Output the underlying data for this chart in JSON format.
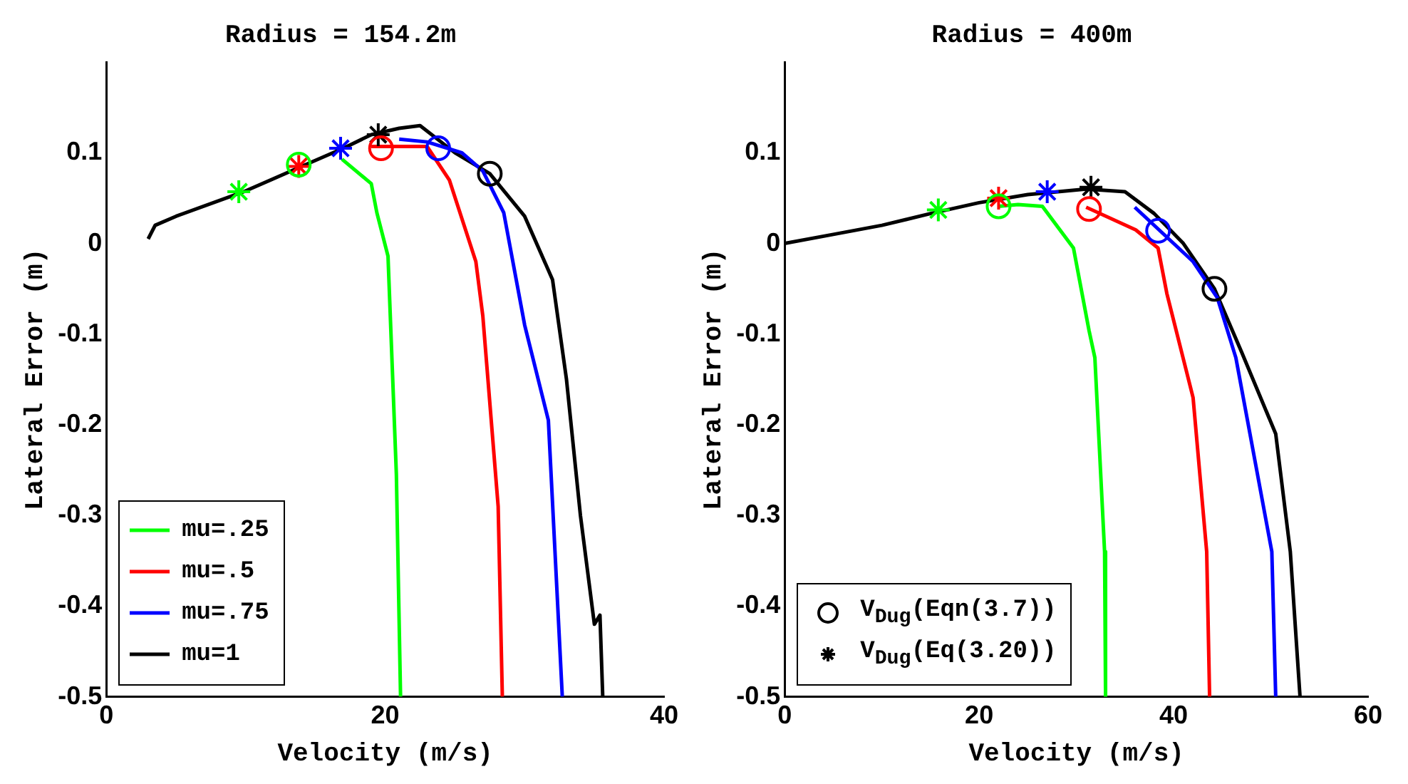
{
  "chart_data": [
    {
      "type": "line",
      "title": "Radius = 154.2m",
      "xlabel": "Velocity (m/s)",
      "ylabel": "Lateral Error (m)",
      "xlim": [
        0,
        40
      ],
      "xticks": [
        0,
        20,
        40
      ],
      "ylim": [
        -0.5,
        0.2
      ],
      "yticks": [
        -0.5,
        -0.4,
        -0.3,
        -0.2,
        -0.1,
        0,
        0.1
      ],
      "grid": false,
      "legend": "bottom left",
      "line_style": "solid",
      "series": [
        {
          "name": "mu=.25",
          "color": "#00ff00",
          "x": [
            16.9,
            19,
            19.4,
            20.2,
            20.8,
            21.1
          ],
          "values": [
            0.093,
            0.066,
            0.034,
            -0.014,
            -0.255,
            -0.5
          ]
        },
        {
          "name": "mu=.5",
          "color": "#ff0000",
          "x": [
            19,
            23,
            24.6,
            26.5,
            27,
            28.1,
            28.4
          ],
          "values": [
            0.107,
            0.107,
            0.07,
            -0.02,
            -0.08,
            -0.29,
            -0.5
          ]
        },
        {
          "name": "mu=.75",
          "color": "#0000ff",
          "x": [
            21,
            23,
            25.5,
            27,
            28.5,
            30,
            31.7,
            32.7
          ],
          "values": [
            0.115,
            0.112,
            0.1,
            0.08,
            0.034,
            -0.09,
            -0.195,
            -0.5
          ]
        },
        {
          "name": "mu=1",
          "color": "#000000",
          "x": [
            3,
            3.5,
            5,
            10,
            14,
            17,
            19,
            21,
            22.5,
            25,
            27.5,
            30,
            32,
            33,
            34,
            35,
            35.4,
            35.6
          ],
          "values": [
            0.005,
            0.02,
            0.03,
            0.058,
            0.085,
            0.105,
            0.12,
            0.127,
            0.13,
            0.1,
            0.077,
            0.03,
            -0.04,
            -0.15,
            -0.3,
            -0.42,
            -0.41,
            -0.5
          ]
        },
        {
          "type": "scatter",
          "marker": "circle",
          "colors": [
            "#00ff00",
            "#ff0000",
            "#0000ff",
            "#000000"
          ],
          "x": [
            13.8,
            19.7,
            23.8,
            27.5
          ],
          "values": [
            0.087,
            0.105,
            0.105,
            0.077
          ]
        },
        {
          "type": "scatter",
          "marker": "cross",
          "colors": [
            "#00ff00",
            "#ff0000",
            "#0000ff",
            "#000000"
          ],
          "x": [
            9.5,
            13.8,
            16.8,
            19.5
          ],
          "values": [
            0.057,
            0.085,
            0.105,
            0.12
          ]
        }
      ]
    },
    {
      "type": "line",
      "title": "Radius = 400m",
      "xlabel": "Velocity (m/s)",
      "ylabel": "Lateral Error (m)",
      "xlim": [
        0,
        60
      ],
      "xticks": [
        0,
        20,
        40,
        60
      ],
      "ylim": [
        -0.5,
        0.2
      ],
      "yticks": [
        -0.5,
        -0.4,
        -0.3,
        -0.2,
        -0.1,
        0,
        0.1
      ],
      "grid": false,
      "legend": "bottom left",
      "line_style": "solid",
      "series": [
        {
          "color": "#00ff00",
          "x": [
            22,
            24,
            26.5,
            29.7,
            31.3,
            31.9,
            32.9,
            33
          ],
          "values": [
            0.041,
            0.043,
            0.041,
            -0.005,
            -0.096,
            -0.126,
            -0.34,
            -0.5
          ]
        },
        {
          "color": "#ff0000",
          "x": [
            31,
            36.1,
            38.4,
            39.3,
            42,
            43.4,
            43.7
          ],
          "values": [
            0.04,
            0.015,
            -0.005,
            -0.055,
            -0.17,
            -0.34,
            -0.5
          ]
        },
        {
          "color": "#0000ff",
          "x": [
            36,
            38.5,
            42,
            44.5,
            46.4,
            50.1,
            50.5
          ],
          "values": [
            0.04,
            0.015,
            -0.02,
            -0.06,
            -0.126,
            -0.34,
            -0.5
          ]
        },
        {
          "color": "#000000",
          "x": [
            0,
            5,
            10,
            15,
            20,
            25,
            31,
            35,
            38,
            41,
            44.2,
            47,
            50.5,
            52,
            53
          ],
          "values": [
            0,
            0.01,
            0.02,
            0.033,
            0.045,
            0.054,
            0.06,
            0.057,
            0.033,
            0,
            -0.05,
            -0.12,
            -0.21,
            -0.34,
            -0.5
          ]
        },
        {
          "type": "scatter",
          "marker": "circle",
          "name": "V$_{Dug}$(Eqn(3.7))",
          "color": "#000000",
          "colors": [
            "#00ff00",
            "#ff0000",
            "#0000ff",
            "#000000"
          ],
          "x": [
            22,
            31.3,
            38.4,
            44.2
          ],
          "values": [
            0.041,
            0.038,
            0.014,
            -0.05
          ]
        },
        {
          "type": "scatter",
          "marker": "cross",
          "name": "V$_{Dug}$(Eq(3.20))",
          "color": "#000000",
          "colors": [
            "#00ff00",
            "#ff0000",
            "#0000ff",
            "#000000"
          ],
          "x": [
            15.8,
            22,
            27,
            31.5
          ],
          "values": [
            0.037,
            0.05,
            0.057,
            0.062
          ]
        }
      ]
    }
  ]
}
